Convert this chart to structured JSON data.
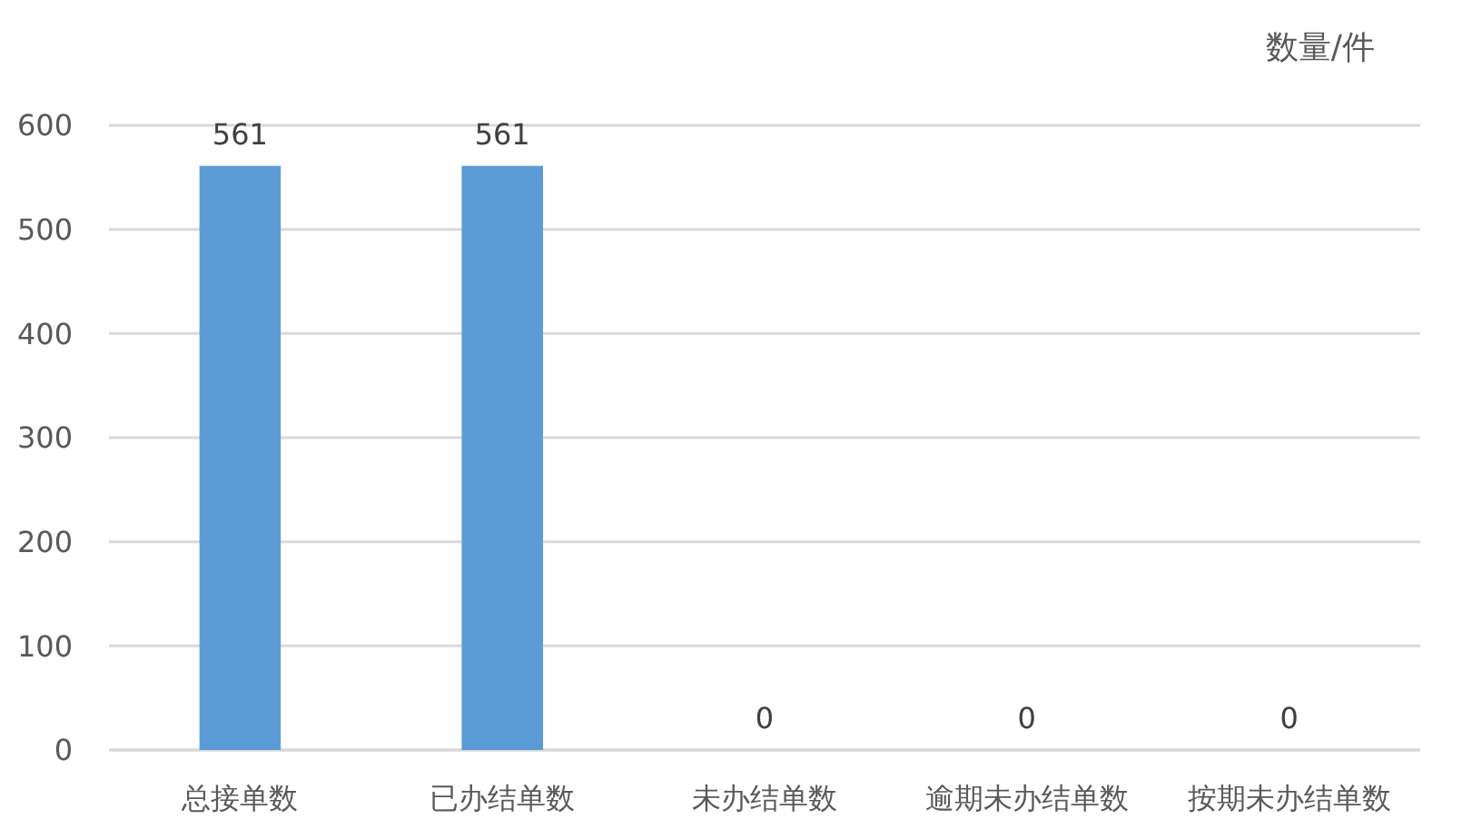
{
  "chart_data": {
    "type": "bar",
    "ylabel": "数量/件",
    "categories": [
      "总接单数",
      "已办结单数",
      "未办结单数",
      "逾期未办结单数",
      "按期未办结单数"
    ],
    "values": [
      561,
      561,
      0,
      0,
      0
    ],
    "color": "#5b9bd5",
    "ylim": [
      0,
      600
    ],
    "yticks": [
      0,
      100,
      200,
      300,
      400,
      500,
      600
    ],
    "grid": "y",
    "data_labels": true
  }
}
